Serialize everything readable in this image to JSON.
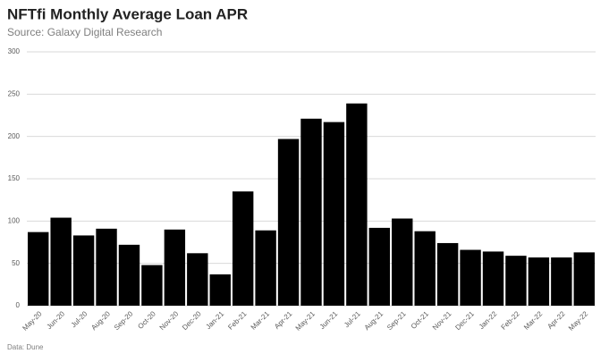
{
  "chart_data": {
    "type": "bar",
    "title": "NFTfi Monthly Average Loan APR",
    "subtitle": "Source: Galaxy Digital Research",
    "note": "Data: Dune",
    "categories": [
      "May-20",
      "Jun-20",
      "Jul-20",
      "Aug-20",
      "Sep-20",
      "Oct-20",
      "Nov-20",
      "Dec-20",
      "Jan-21",
      "Feb-21",
      "Mar-21",
      "Apr-21",
      "May-21",
      "Jun-21",
      "Jul-21",
      "Aug-21",
      "Sep-21",
      "Oct-21",
      "Nov-21",
      "Dec-21",
      "Jan-22",
      "Feb-22",
      "Mar-22",
      "Apr-22",
      "May-22"
    ],
    "values": [
      87,
      104,
      83,
      91,
      72,
      48,
      90,
      62,
      37,
      135,
      89,
      197,
      221,
      217,
      239,
      92,
      103,
      88,
      74,
      66,
      64,
      59,
      57,
      57,
      63
    ],
    "color": "#000000",
    "ylim": [
      0,
      300
    ],
    "yticks": [
      0,
      50,
      100,
      150,
      200,
      250,
      300
    ],
    "grid": true
  }
}
